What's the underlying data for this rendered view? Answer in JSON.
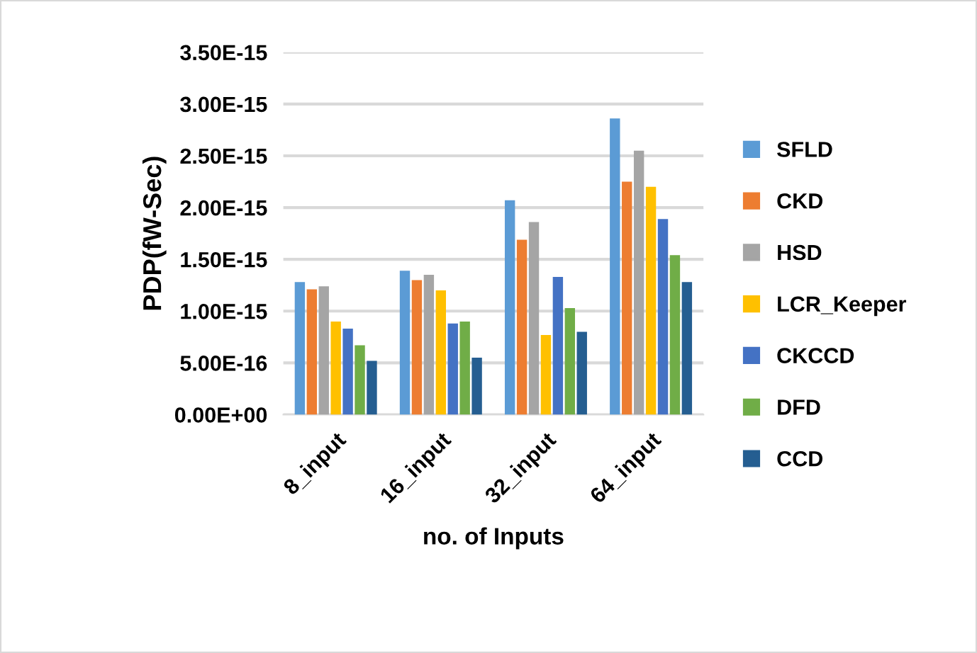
{
  "chart_data": {
    "type": "bar",
    "xlabel": "no. of Inputs",
    "ylabel": "PDP(fW-Sec)",
    "categories": [
      "8_input",
      "16_input",
      "32_input",
      "64_input"
    ],
    "series": [
      {
        "name": "SFLD",
        "color": "#5b9bd5",
        "values": [
          1.28e-15,
          1.39e-15,
          2.07e-15,
          2.86e-15
        ]
      },
      {
        "name": "CKD",
        "color": "#ed7d31",
        "values": [
          1.21e-15,
          1.3e-15,
          1.69e-15,
          2.25e-15
        ]
      },
      {
        "name": "HSD",
        "color": "#a5a5a5",
        "values": [
          1.24e-15,
          1.35e-15,
          1.86e-15,
          2.55e-15
        ]
      },
      {
        "name": "LCR_Keeper",
        "color": "#ffc000",
        "values": [
          9e-16,
          1.2e-15,
          7.7e-16,
          2.2e-15
        ]
      },
      {
        "name": "CKCCD",
        "color": "#4472c4",
        "values": [
          8.3e-16,
          8.8e-16,
          1.33e-15,
          1.89e-15
        ]
      },
      {
        "name": "DFD",
        "color": "#70ad47",
        "values": [
          6.7e-16,
          9e-16,
          1.03e-15,
          1.54e-15
        ]
      },
      {
        "name": "CCD",
        "color": "#255e91",
        "values": [
          5.2e-16,
          5.5e-16,
          8e-16,
          1.28e-15
        ]
      }
    ],
    "ylim": [
      0,
      3.5e-15
    ],
    "yticks": [
      {
        "value": 0,
        "label": "0.00E+00"
      },
      {
        "value": 5e-16,
        "label": "5.00E-16"
      },
      {
        "value": 1e-15,
        "label": "1.00E-15"
      },
      {
        "value": 1.5e-15,
        "label": "1.50E-15"
      },
      {
        "value": 2e-15,
        "label": "2.00E-15"
      },
      {
        "value": 2.5e-15,
        "label": "2.50E-15"
      },
      {
        "value": 3e-15,
        "label": "3.00E-15"
      },
      {
        "value": 3.5e-15,
        "label": "3.50E-15"
      }
    ],
    "grid": "y",
    "legend": "right"
  }
}
